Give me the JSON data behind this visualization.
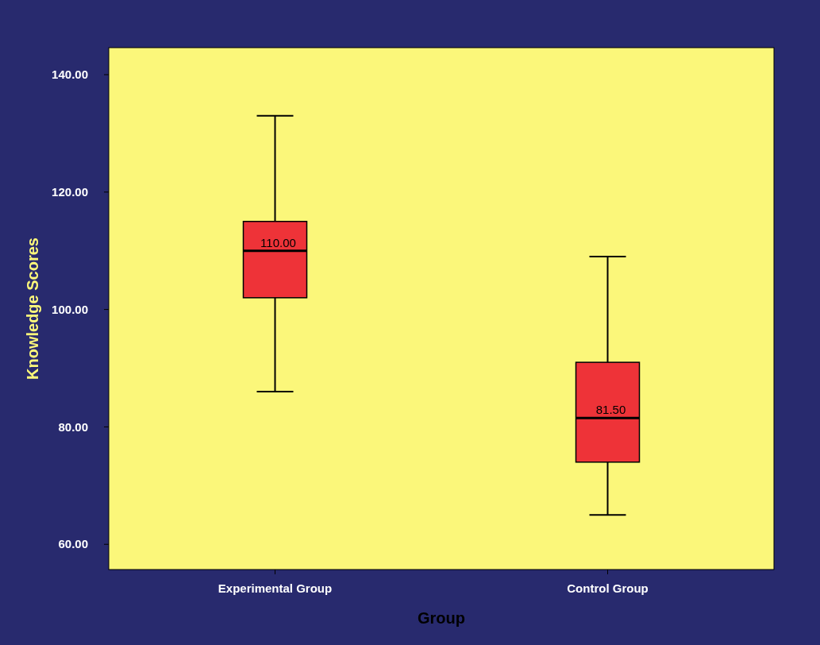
{
  "chart_data": {
    "type": "box",
    "xlabel": "Group",
    "ylabel": "Knowledge Scores",
    "categories": [
      "Experimental Group",
      "Control Group"
    ],
    "boxes": [
      {
        "low": 86,
        "q1": 102,
        "median": 110,
        "q3": 115,
        "high": 133
      },
      {
        "low": 65,
        "q1": 74,
        "median": 81.5,
        "q3": 91,
        "high": 109
      }
    ],
    "color": "#ee3338",
    "ylim": [
      55.7,
      144.6
    ],
    "yticks": [
      {
        "value": 60,
        "label": "60.00"
      },
      {
        "value": 80,
        "label": "80.00"
      },
      {
        "value": 100,
        "label": "100.00"
      },
      {
        "value": 120,
        "label": "120.00"
      },
      {
        "value": 140,
        "label": "140.00"
      }
    ],
    "annotations": [
      {
        "text": "110.00",
        "x": "Experimental Group",
        "y": 110
      },
      {
        "text": "81.50",
        "x": "Control Group",
        "y": 81.5
      }
    ],
    "grid": false
  }
}
